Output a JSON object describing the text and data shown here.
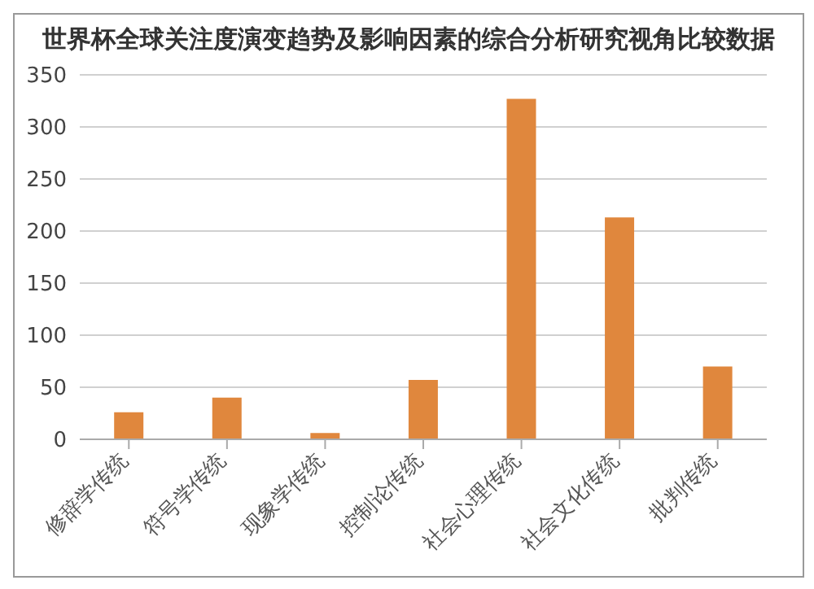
{
  "chart_data": {
    "type": "bar",
    "title": "世界杯全球关注度演变趋势及影响因素的综合分析研究视角比较数据",
    "categories": [
      "修辞学传统",
      "符号学传统",
      "现象学传统",
      "控制论传统",
      "社会心理传统",
      "社会文化传统",
      "批判传统"
    ],
    "values": [
      26,
      40,
      6,
      57,
      327,
      213,
      70
    ],
    "color": "#e0873d",
    "ylim": [
      0,
      350
    ],
    "yticks": [
      0,
      50,
      100,
      150,
      200,
      250,
      300,
      350
    ],
    "grid": "y"
  }
}
